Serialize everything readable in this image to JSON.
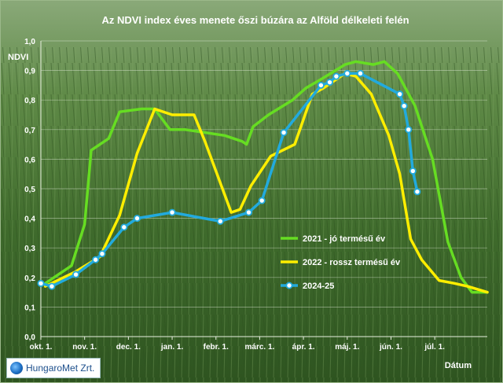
{
  "chart_data": {
    "type": "line",
    "title": "Az NDVI index éves menete őszi búzára az Alföld délkeleti felén",
    "ylabel": "NDVI",
    "xlabel": "Dátum",
    "ylim": [
      0,
      1
    ],
    "yticks": [
      "0,0",
      "0,1",
      "0,2",
      "0,3",
      "0,4",
      "0,5",
      "0,6",
      "0,7",
      "0,8",
      "0,9",
      "1,0"
    ],
    "xlim": [
      0,
      10.2
    ],
    "xticks": [
      {
        "x": 0,
        "label": "okt. 1."
      },
      {
        "x": 1,
        "label": "nov. 1."
      },
      {
        "x": 2,
        "label": "dec. 1."
      },
      {
        "x": 3,
        "label": "jan. 1."
      },
      {
        "x": 4,
        "label": "febr. 1."
      },
      {
        "x": 5,
        "label": "márc. 1."
      },
      {
        "x": 6,
        "label": "ápr. 1."
      },
      {
        "x": 7,
        "label": "máj. 1."
      },
      {
        "x": 8,
        "label": "jún. 1."
      },
      {
        "x": 9,
        "label": "júl. 1."
      }
    ],
    "series": [
      {
        "name": "2021 - jó termésű év",
        "color": "#66dd22",
        "markers": false,
        "x": [
          0.1,
          0.7,
          1.0,
          1.15,
          1.55,
          1.8,
          2.3,
          2.6,
          2.95,
          3.3,
          4.2,
          4.6,
          4.7,
          4.85,
          5.2,
          5.75,
          6.05,
          6.4,
          6.95,
          7.2,
          7.6,
          7.85,
          8.15,
          8.55,
          8.95,
          9.3,
          9.6,
          9.85,
          10.2
        ],
        "values": [
          0.18,
          0.24,
          0.38,
          0.63,
          0.67,
          0.76,
          0.77,
          0.77,
          0.7,
          0.7,
          0.68,
          0.66,
          0.65,
          0.71,
          0.75,
          0.8,
          0.84,
          0.87,
          0.92,
          0.93,
          0.92,
          0.93,
          0.89,
          0.78,
          0.6,
          0.32,
          0.2,
          0.15,
          0.15
        ]
      },
      {
        "name": "2022 - rossz termésű év",
        "color": "#ffee00",
        "markers": false,
        "x": [
          0.1,
          0.8,
          1.35,
          1.8,
          2.2,
          2.6,
          3.0,
          3.5,
          3.75,
          4.35,
          4.55,
          4.8,
          5.25,
          5.8,
          6.2,
          6.45,
          6.95,
          7.2,
          7.55,
          7.95,
          8.2,
          8.45,
          8.7,
          9.1,
          9.45,
          9.75,
          10.2
        ],
        "values": [
          0.17,
          0.22,
          0.27,
          0.41,
          0.62,
          0.77,
          0.75,
          0.75,
          0.66,
          0.42,
          0.43,
          0.51,
          0.61,
          0.65,
          0.82,
          0.84,
          0.89,
          0.88,
          0.82,
          0.68,
          0.55,
          0.33,
          0.26,
          0.19,
          0.18,
          0.17,
          0.15
        ]
      },
      {
        "name": "2024-25",
        "color": "#22aadd",
        "markers": true,
        "x": [
          0.0,
          0.25,
          0.8,
          1.25,
          1.4,
          1.9,
          2.2,
          3.0,
          4.1,
          4.75,
          5.05,
          5.55,
          6.4,
          6.6,
          6.75,
          7.0,
          7.3,
          8.2,
          8.3,
          8.4,
          8.5,
          8.6
        ],
        "values": [
          0.18,
          0.17,
          0.21,
          0.26,
          0.28,
          0.37,
          0.4,
          0.42,
          0.39,
          0.42,
          0.46,
          0.69,
          0.85,
          0.86,
          0.88,
          0.89,
          0.89,
          0.82,
          0.78,
          0.7,
          0.56,
          0.49
        ]
      }
    ]
  },
  "logo_text": "HungaroMet Zrt."
}
